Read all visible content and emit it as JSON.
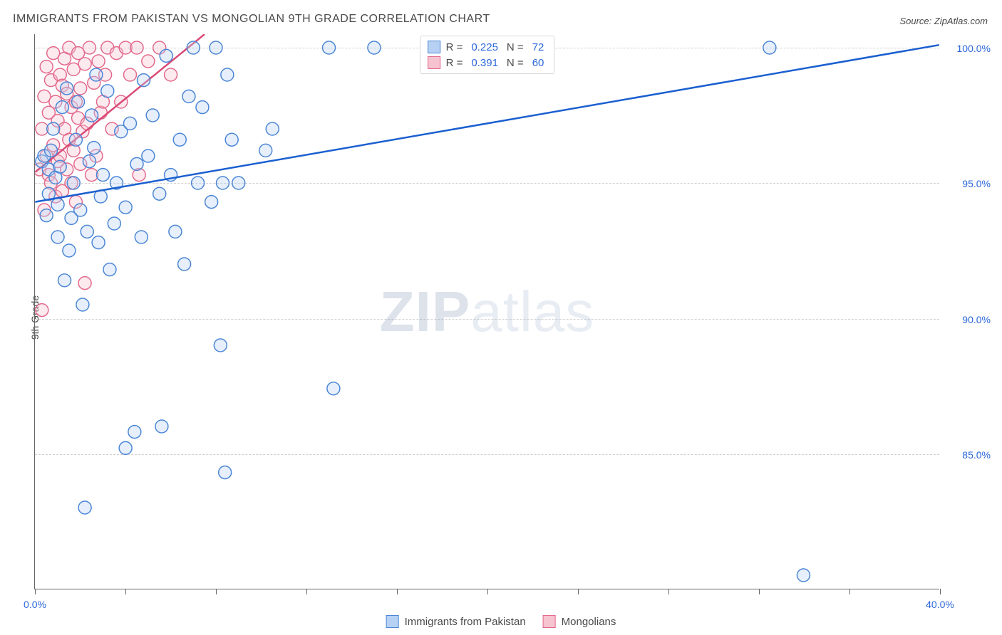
{
  "title": "IMMIGRANTS FROM PAKISTAN VS MONGOLIAN 9TH GRADE CORRELATION CHART",
  "source": "Source: ZipAtlas.com",
  "ylabel": "9th Grade",
  "watermark_bold": "ZIP",
  "watermark_light": "atlas",
  "chart": {
    "type": "scatter",
    "xlim": [
      0,
      40
    ],
    "ylim": [
      80,
      100.5
    ],
    "x_ticks": [
      0,
      4,
      8,
      12,
      16,
      20,
      24,
      28,
      32,
      36,
      40
    ],
    "x_tick_labels": {
      "0": "0.0%",
      "40": "40.0%"
    },
    "y_gridlines": [
      85,
      90,
      95,
      100
    ],
    "y_tick_labels": {
      "85": "85.0%",
      "90": "90.0%",
      "95": "95.0%",
      "100": "100.0%"
    },
    "background_color": "#ffffff",
    "grid_color": "#d0d0d0",
    "axis_color": "#666666"
  },
  "series": [
    {
      "id": "pakistan",
      "label": "Immigrants from Pakistan",
      "legend_R": "0.225",
      "legend_N": "72",
      "marker_fill": "#b7d1f4",
      "marker_stroke": "#4b86d6",
      "trend_color": "#1a5fd0",
      "trend": {
        "x1": 0,
        "y1": 94.3,
        "x2": 40,
        "y2": 100.1
      },
      "points": [
        [
          0.3,
          95.8
        ],
        [
          0.4,
          96.0
        ],
        [
          0.5,
          93.8
        ],
        [
          0.6,
          94.6
        ],
        [
          0.6,
          95.5
        ],
        [
          0.7,
          96.2
        ],
        [
          0.8,
          97.0
        ],
        [
          0.9,
          95.2
        ],
        [
          1.0,
          93.0
        ],
        [
          1.0,
          94.2
        ],
        [
          1.1,
          95.6
        ],
        [
          1.2,
          97.8
        ],
        [
          1.3,
          91.4
        ],
        [
          1.4,
          98.5
        ],
        [
          1.5,
          92.5
        ],
        [
          1.6,
          93.7
        ],
        [
          1.7,
          95.0
        ],
        [
          1.8,
          96.6
        ],
        [
          1.9,
          98.0
        ],
        [
          2.0,
          94.0
        ],
        [
          2.1,
          90.5
        ],
        [
          2.2,
          83.0
        ],
        [
          2.3,
          93.2
        ],
        [
          2.4,
          95.8
        ],
        [
          2.5,
          97.5
        ],
        [
          2.6,
          96.3
        ],
        [
          2.7,
          99.0
        ],
        [
          2.8,
          92.8
        ],
        [
          2.9,
          94.5
        ],
        [
          3.0,
          95.3
        ],
        [
          3.2,
          98.4
        ],
        [
          3.3,
          91.8
        ],
        [
          3.5,
          93.5
        ],
        [
          3.6,
          95.0
        ],
        [
          3.8,
          96.9
        ],
        [
          4.0,
          94.1
        ],
        [
          4.0,
          85.2
        ],
        [
          4.2,
          97.2
        ],
        [
          4.4,
          85.8
        ],
        [
          4.5,
          95.7
        ],
        [
          4.7,
          93.0
        ],
        [
          4.8,
          98.8
        ],
        [
          5.0,
          96.0
        ],
        [
          5.2,
          97.5
        ],
        [
          5.5,
          94.6
        ],
        [
          5.6,
          86.0
        ],
        [
          5.8,
          99.7
        ],
        [
          6.0,
          95.3
        ],
        [
          6.2,
          93.2
        ],
        [
          6.4,
          96.6
        ],
        [
          6.6,
          92.0
        ],
        [
          6.8,
          98.2
        ],
        [
          7.0,
          100.0
        ],
        [
          7.2,
          95.0
        ],
        [
          7.4,
          97.8
        ],
        [
          7.8,
          94.3
        ],
        [
          8.0,
          100.0
        ],
        [
          8.2,
          89.0
        ],
        [
          8.3,
          95.0
        ],
        [
          8.4,
          84.3
        ],
        [
          8.5,
          99.0
        ],
        [
          8.7,
          96.6
        ],
        [
          9.0,
          95.0
        ],
        [
          10.2,
          96.2
        ],
        [
          10.5,
          97.0
        ],
        [
          13.0,
          100.0
        ],
        [
          13.2,
          87.4
        ],
        [
          15.0,
          100.0
        ],
        [
          18.0,
          100.0
        ],
        [
          20.0,
          100.0
        ],
        [
          32.5,
          100.0
        ],
        [
          34.0,
          80.5
        ]
      ]
    },
    {
      "id": "mongolian",
      "label": "Mongolians",
      "legend_R": "0.391",
      "legend_N": "60",
      "marker_fill": "#f6c3d0",
      "marker_stroke": "#e36a8c",
      "trend_color": "#d94a74",
      "trend": {
        "x1": 0,
        "y1": 95.4,
        "x2": 7.5,
        "y2": 100.5
      },
      "points": [
        [
          0.2,
          95.5
        ],
        [
          0.3,
          97.0
        ],
        [
          0.4,
          94.0
        ],
        [
          0.4,
          98.2
        ],
        [
          0.5,
          96.0
        ],
        [
          0.5,
          99.3
        ],
        [
          0.6,
          95.3
        ],
        [
          0.6,
          97.6
        ],
        [
          0.7,
          98.8
        ],
        [
          0.7,
          95.0
        ],
        [
          0.8,
          96.4
        ],
        [
          0.8,
          99.8
        ],
        [
          0.9,
          94.5
        ],
        [
          0.9,
          98.0
        ],
        [
          1.0,
          95.8
        ],
        [
          1.0,
          97.3
        ],
        [
          1.1,
          99.0
        ],
        [
          1.1,
          96.0
        ],
        [
          1.2,
          98.6
        ],
        [
          1.2,
          94.7
        ],
        [
          1.3,
          97.0
        ],
        [
          1.3,
          99.6
        ],
        [
          1.4,
          95.5
        ],
        [
          1.4,
          98.3
        ],
        [
          1.5,
          96.6
        ],
        [
          1.5,
          100.0
        ],
        [
          1.6,
          97.8
        ],
        [
          1.6,
          95.0
        ],
        [
          1.7,
          99.2
        ],
        [
          1.7,
          96.2
        ],
        [
          1.8,
          98.0
        ],
        [
          1.8,
          94.3
        ],
        [
          1.9,
          97.4
        ],
        [
          1.9,
          99.8
        ],
        [
          2.0,
          95.7
        ],
        [
          2.0,
          98.5
        ],
        [
          2.1,
          96.9
        ],
        [
          2.2,
          99.4
        ],
        [
          2.2,
          91.3
        ],
        [
          2.3,
          97.2
        ],
        [
          2.4,
          100.0
        ],
        [
          2.5,
          95.3
        ],
        [
          2.6,
          98.7
        ],
        [
          2.7,
          96.0
        ],
        [
          2.8,
          99.5
        ],
        [
          2.9,
          97.6
        ],
        [
          0.3,
          90.3
        ],
        [
          3.0,
          98.0
        ],
        [
          3.1,
          99.0
        ],
        [
          3.2,
          100.0
        ],
        [
          3.4,
          97.0
        ],
        [
          3.6,
          99.8
        ],
        [
          3.8,
          98.0
        ],
        [
          4.0,
          100.0
        ],
        [
          4.2,
          99.0
        ],
        [
          4.6,
          95.3
        ],
        [
          4.5,
          100.0
        ],
        [
          5.0,
          99.5
        ],
        [
          5.5,
          100.0
        ],
        [
          6.0,
          99.0
        ]
      ]
    }
  ],
  "legend_labels": {
    "R": "R =",
    "N": "N ="
  }
}
